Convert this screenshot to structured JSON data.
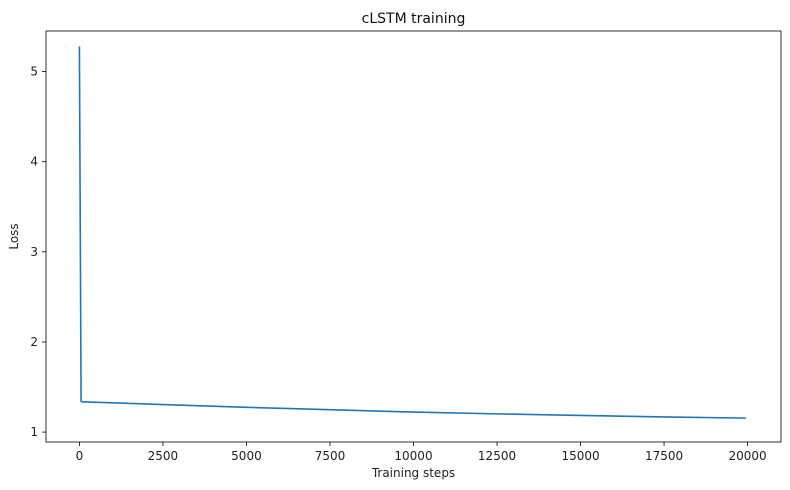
{
  "chart_data": {
    "type": "line",
    "title": "cLSTM training",
    "xlabel": "Training steps",
    "ylabel": "Loss",
    "xlim": [
      -1000,
      21000
    ],
    "ylim": [
      0.89,
      5.45
    ],
    "xticks": [
      0,
      2500,
      5000,
      7500,
      10000,
      12500,
      15000,
      17500,
      20000
    ],
    "yticks": [
      1,
      2,
      3,
      4,
      5
    ],
    "grid": false,
    "legend": "none",
    "series": [
      {
        "color": "#1f77b4",
        "x": [
          0,
          50,
          100,
          200,
          1000,
          2500,
          5000,
          7500,
          10000,
          12500,
          15000,
          17500,
          19950
        ],
        "y": [
          5.28,
          1.34,
          1.335,
          1.335,
          1.325,
          1.305,
          1.275,
          1.248,
          1.222,
          1.202,
          1.185,
          1.168,
          1.155
        ]
      }
    ]
  }
}
